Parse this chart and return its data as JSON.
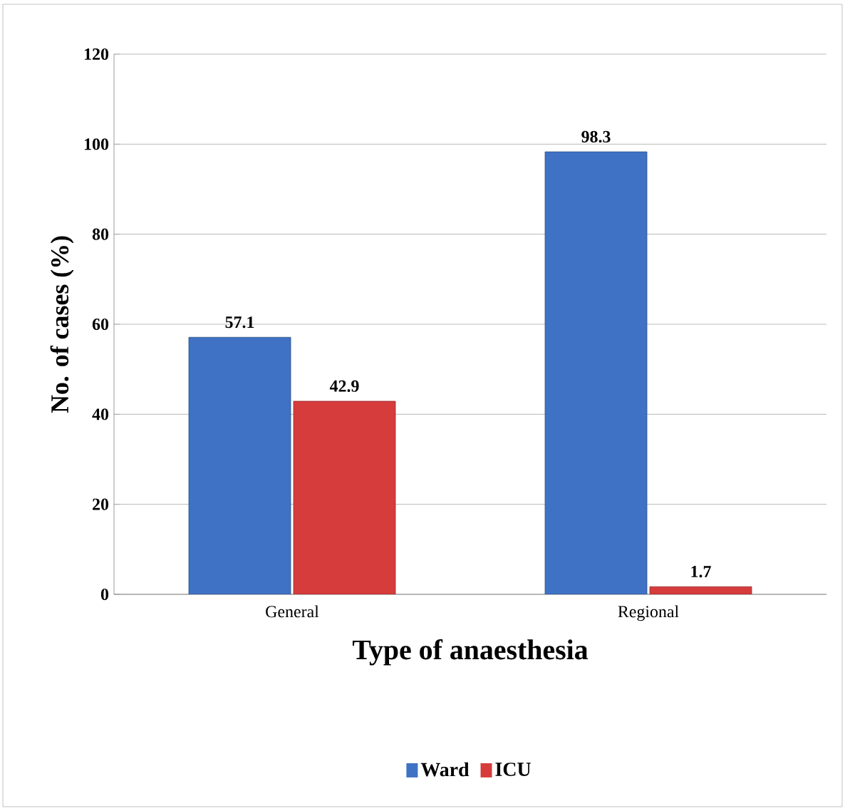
{
  "chart_data": {
    "type": "bar",
    "xlabel": "Type of anaesthesia",
    "ylabel": "No. of cases (%)",
    "categories": [
      "General",
      "Regional"
    ],
    "series": [
      {
        "name": "Ward",
        "color": "#3f72c4",
        "values": [
          57.1,
          98.3
        ],
        "value_labels": [
          "57.1",
          "98.3"
        ]
      },
      {
        "name": "ICU",
        "color": "#d63c3c",
        "values": [
          42.9,
          1.7
        ],
        "value_labels": [
          "42.9",
          "1.7"
        ]
      }
    ],
    "ylim": [
      0,
      120
    ],
    "yticks": [
      0,
      20,
      40,
      60,
      80,
      100,
      120
    ],
    "grid": "y",
    "legend": "bottom"
  }
}
